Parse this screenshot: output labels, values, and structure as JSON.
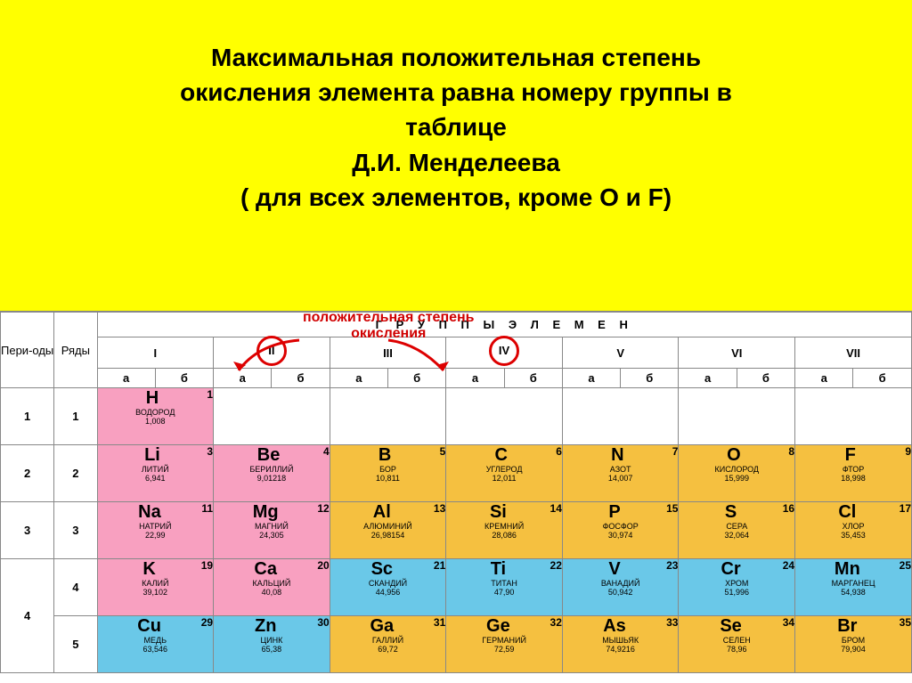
{
  "title": {
    "l1": "Максимальная положительная степень",
    "l2": "окисления элемента равна номеру группы в",
    "l3": "таблице",
    "l4": "Д.И. Менделеева",
    "l5": "( для всех элементов, кроме О и F)"
  },
  "annotation": {
    "l1": "положительная степень",
    "l2": "окисления"
  },
  "headers": {
    "groups": "Г Р У П П Ы   Э Л Е М Е Н",
    "periods": "Пери-оды",
    "rows": "Ряды",
    "a": "а",
    "b": "б"
  },
  "romans": [
    "I",
    "II",
    "III",
    "IV",
    "V",
    "VI",
    "VII"
  ],
  "circled": [
    1,
    3
  ],
  "periods": [
    "1",
    "2",
    "3",
    "4"
  ],
  "row_nums": [
    "1",
    "2",
    "3",
    "4",
    "5"
  ],
  "colors": {
    "pink": "#f8a0c0",
    "orange": "#f5c040",
    "blue": "#6ac8e8",
    "yellow_bg": "#ffff00",
    "red": "#d00000"
  },
  "elements": {
    "r1": [
      {
        "sym": "H",
        "z": "1",
        "name": "ВОДОРОД",
        "mass": "1,008",
        "cls": "pink"
      },
      null,
      null,
      null,
      null,
      null,
      null
    ],
    "r2": [
      {
        "sym": "Li",
        "z": "3",
        "name": "ЛИТИЙ",
        "mass": "6,941",
        "cls": "pink"
      },
      {
        "sym": "Be",
        "z": "4",
        "name": "БЕРИЛЛИЙ",
        "mass": "9,01218",
        "cls": "pink"
      },
      {
        "sym": "B",
        "z": "5",
        "name": "БОР",
        "mass": "10,811",
        "cls": "orange"
      },
      {
        "sym": "C",
        "z": "6",
        "name": "УГЛЕРОД",
        "mass": "12,011",
        "cls": "orange"
      },
      {
        "sym": "N",
        "z": "7",
        "name": "АЗОТ",
        "mass": "14,007",
        "cls": "orange"
      },
      {
        "sym": "O",
        "z": "8",
        "name": "КИСЛОРОД",
        "mass": "15,999",
        "cls": "orange"
      },
      {
        "sym": "F",
        "z": "9",
        "name": "ФТОР",
        "mass": "18,998",
        "cls": "orange"
      }
    ],
    "r3": [
      {
        "sym": "Na",
        "z": "11",
        "name": "НАТРИЙ",
        "mass": "22,99",
        "cls": "pink"
      },
      {
        "sym": "Mg",
        "z": "12",
        "name": "МАГНИЙ",
        "mass": "24,305",
        "cls": "pink"
      },
      {
        "sym": "Al",
        "z": "13",
        "name": "АЛЮМИНИЙ",
        "mass": "26,98154",
        "cls": "orange"
      },
      {
        "sym": "Si",
        "z": "14",
        "name": "КРЕМНИЙ",
        "mass": "28,086",
        "cls": "orange"
      },
      {
        "sym": "P",
        "z": "15",
        "name": "ФОСФОР",
        "mass": "30,974",
        "cls": "orange"
      },
      {
        "sym": "S",
        "z": "16",
        "name": "СЕРА",
        "mass": "32,064",
        "cls": "orange"
      },
      {
        "sym": "Cl",
        "z": "17",
        "name": "ХЛОР",
        "mass": "35,453",
        "cls": "orange"
      }
    ],
    "r4": [
      {
        "sym": "K",
        "z": "19",
        "name": "КАЛИЙ",
        "mass": "39,102",
        "cls": "pink"
      },
      {
        "sym": "Ca",
        "z": "20",
        "name": "КАЛЬЦИЙ",
        "mass": "40,08",
        "cls": "pink"
      },
      {
        "sym": "Sc",
        "z": "21",
        "name": "СКАНДИЙ",
        "mass": "44,956",
        "cls": "blue"
      },
      {
        "sym": "Ti",
        "z": "22",
        "name": "ТИТАН",
        "mass": "47,90",
        "cls": "blue"
      },
      {
        "sym": "V",
        "z": "23",
        "name": "ВАНАДИЙ",
        "mass": "50,942",
        "cls": "blue"
      },
      {
        "sym": "Cr",
        "z": "24",
        "name": "ХРОМ",
        "mass": "51,996",
        "cls": "blue"
      },
      {
        "sym": "Mn",
        "z": "25",
        "name": "МАРГАНЕЦ",
        "mass": "54,938",
        "cls": "blue"
      }
    ],
    "r5": [
      {
        "sym": "Cu",
        "z": "29",
        "name": "МЕДЬ",
        "mass": "63,546",
        "cls": "blue"
      },
      {
        "sym": "Zn",
        "z": "30",
        "name": "ЦИНК",
        "mass": "65,38",
        "cls": "blue"
      },
      {
        "sym": "Ga",
        "z": "31",
        "name": "ГАЛЛИЙ",
        "mass": "69,72",
        "cls": "orange"
      },
      {
        "sym": "Ge",
        "z": "32",
        "name": "ГЕРМАНИЙ",
        "mass": "72,59",
        "cls": "orange"
      },
      {
        "sym": "As",
        "z": "33",
        "name": "МЫШЬЯК",
        "mass": "74,9216",
        "cls": "orange"
      },
      {
        "sym": "Se",
        "z": "34",
        "name": "СЕЛЕН",
        "mass": "78,96",
        "cls": "orange"
      },
      {
        "sym": "Br",
        "z": "35",
        "name": "БРОМ",
        "mass": "79,904",
        "cls": "orange"
      }
    ]
  }
}
